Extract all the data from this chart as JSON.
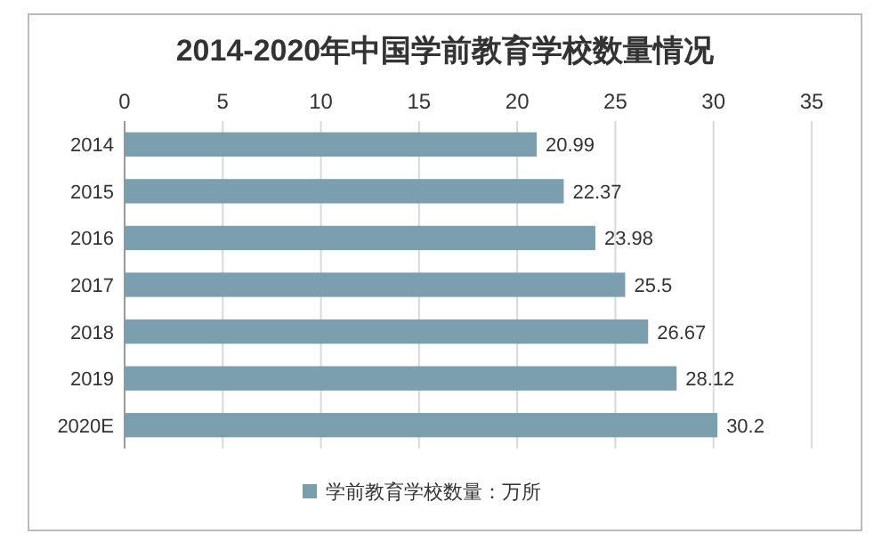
{
  "chart_data": {
    "type": "bar",
    "orientation": "horizontal",
    "title": "2014-2020年中国学前教育学校数量情况",
    "categories": [
      "2014",
      "2015",
      "2016",
      "2017",
      "2018",
      "2019",
      "2020E"
    ],
    "series": [
      {
        "name": "学前教育学校数量：万所",
        "color": "#7b9fae",
        "values": [
          20.99,
          22.37,
          23.98,
          25.5,
          26.67,
          28.12,
          30.2
        ]
      }
    ],
    "xlim": [
      0,
      35
    ],
    "xticks": [
      0,
      5,
      10,
      15,
      20,
      25,
      30,
      35
    ],
    "grid": "x",
    "data_labels": true,
    "legend": "bottom"
  }
}
